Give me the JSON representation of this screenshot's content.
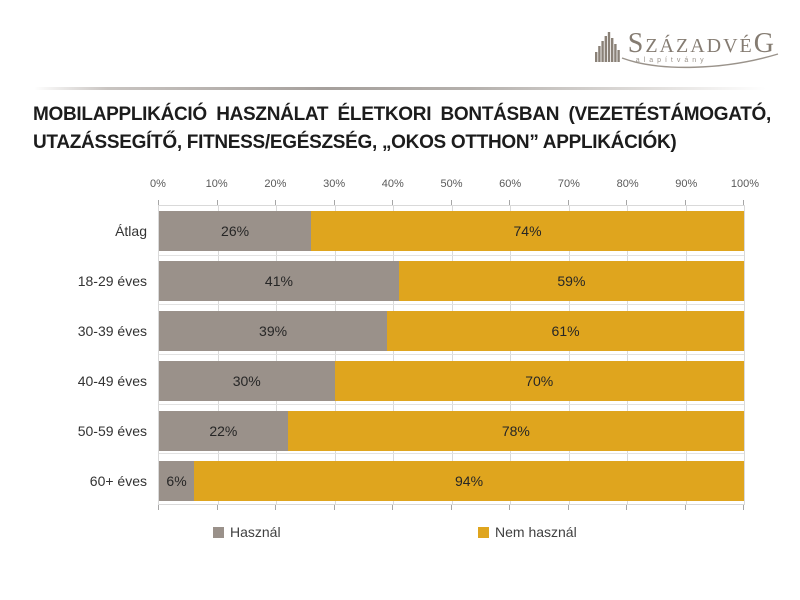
{
  "logo": {
    "name_first": "S",
    "name_mid": "ZÁZADVÉ",
    "name_last": "G",
    "subtitle": "alapítvány",
    "color": "#857c72"
  },
  "title": {
    "line1": "MOBILAPPLIKÁCIÓ HASZNÁLAT ÉLETKORI BONTÁSBAN (VEZETÉSTÁMOGATÓ,",
    "line2": "UTAZÁSSEGÍTŐ, FITNESS/EGÉSZSÉG, „OKOS OTTHON” APPLIKÁCIÓK)"
  },
  "chart_data": {
    "type": "bar",
    "orientation": "horizontal",
    "stacked": true,
    "categories": [
      "Átlag",
      "18-29 éves",
      "30-39 éves",
      "40-49 éves",
      "50-59 éves",
      "60+ éves"
    ],
    "series": [
      {
        "name": "Használ",
        "color": "#9a918a",
        "values": [
          26,
          41,
          39,
          30,
          22,
          6
        ]
      },
      {
        "name": "Nem használ",
        "color": "#dfa51e",
        "values": [
          74,
          59,
          61,
          70,
          78,
          94
        ]
      }
    ],
    "value_suffix": "%",
    "x_ticks": [
      "0%",
      "10%",
      "20%",
      "30%",
      "40%",
      "50%",
      "60%",
      "70%",
      "80%",
      "90%",
      "100%"
    ],
    "xlim": [
      0,
      100
    ],
    "grid": true,
    "legend_position": "bottom"
  }
}
